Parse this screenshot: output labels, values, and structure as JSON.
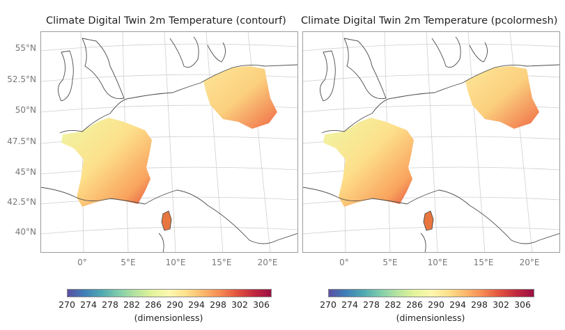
{
  "panels": [
    {
      "title": "Climate Digital Twin 2m Temperature (contourf)"
    },
    {
      "title": "Climate Digital Twin 2m Temperature (pcolormesh)"
    }
  ],
  "lat_labels": [
    "55°N",
    "52.5°N",
    "50°N",
    "47.5°N",
    "45°N",
    "42.5°N",
    "40°N"
  ],
  "lon_labels": [
    "0°",
    "5°E",
    "10°E",
    "15°E",
    "20°E"
  ],
  "colorbar": {
    "ticks": [
      "270",
      "274",
      "278",
      "282",
      "286",
      "290",
      "294",
      "298",
      "302",
      "306"
    ],
    "label": "(dimensionless)",
    "range": [
      270,
      308
    ]
  },
  "colors": {
    "low": "#5a4fa2",
    "mid": "#fdf7b0",
    "high": "#9a0f42",
    "coast": "#4a4a4a"
  }
}
